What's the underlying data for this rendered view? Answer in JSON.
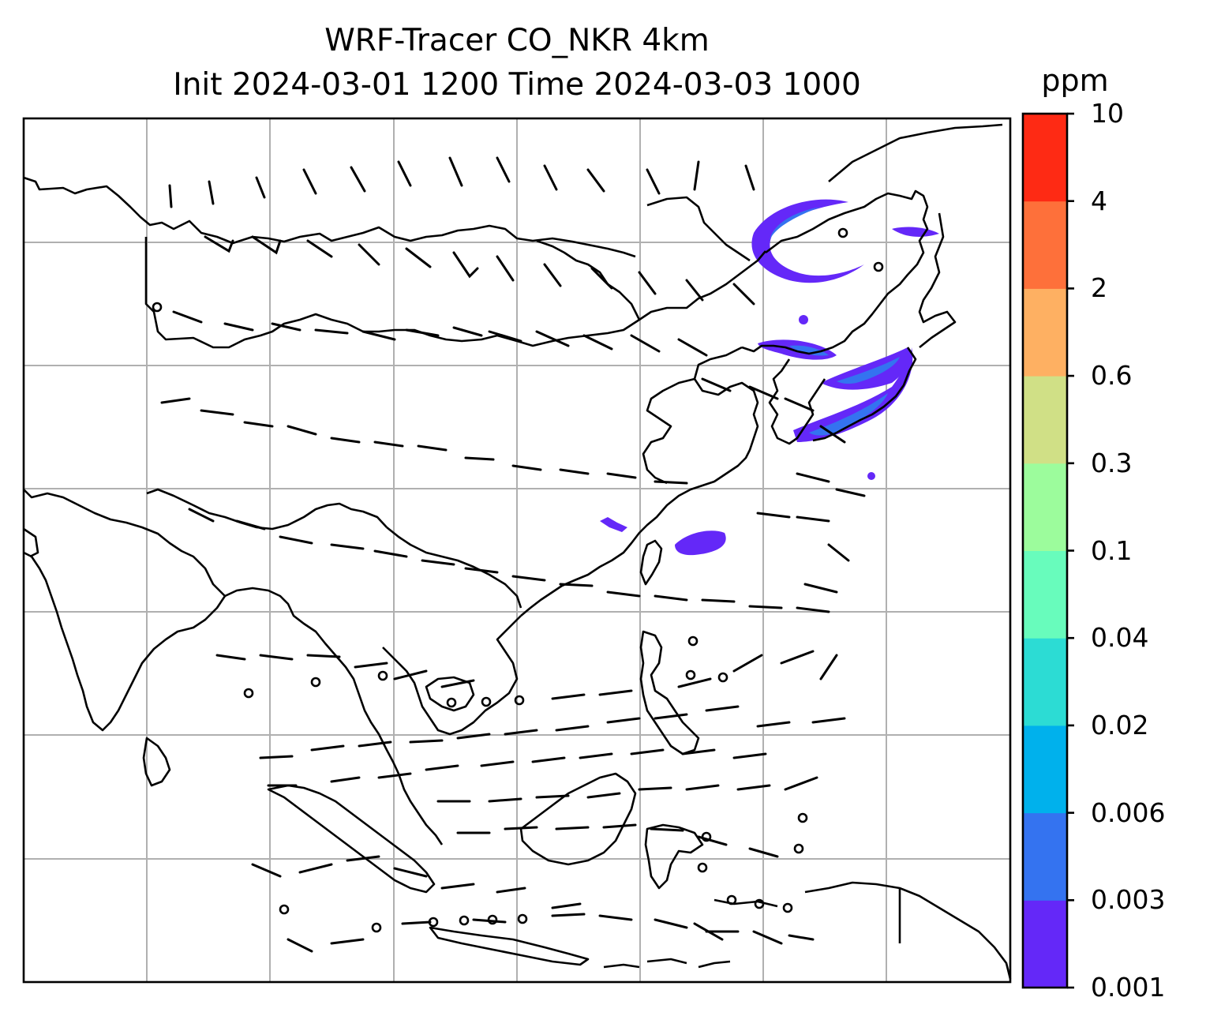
{
  "title_line1": "WRF-Tracer CO_NKR 4km",
  "title_line2": "Init 2024-03-01 1200 Time 2024-03-03 1000",
  "colorbar": {
    "unit": "ppm",
    "levels": [
      "0.001",
      "0.003",
      "0.006",
      "0.02",
      "0.04",
      "0.1",
      "0.3",
      "0.6",
      "2",
      "4",
      "10"
    ],
    "colors": [
      "#6428f8",
      "#3473f0",
      "#00b1ec",
      "#2cdcd4",
      "#68fcbc",
      "#9cfc9c",
      "#d0e086",
      "#feb062",
      "#fe703a",
      "#fe2a14"
    ]
  },
  "map": {
    "features": [
      "coastlines",
      "gridlines",
      "wind-barbs",
      "tracer-plumes"
    ],
    "plume_color": "#6428f8",
    "plume_core_color": "#3473f0"
  }
}
